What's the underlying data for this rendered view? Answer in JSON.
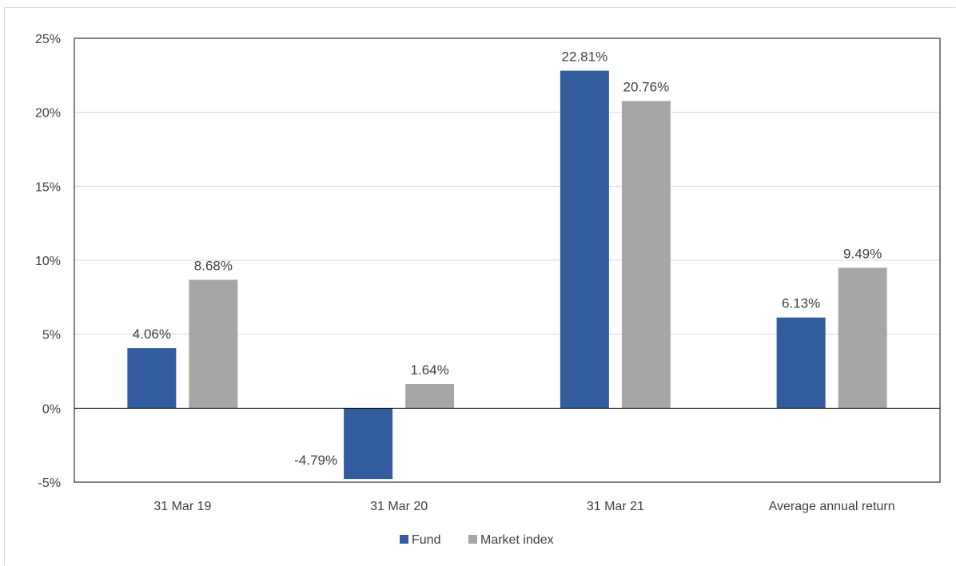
{
  "chart_data": {
    "type": "bar",
    "categories": [
      "31 Mar 19",
      "31 Mar 20",
      "31 Mar 21",
      "Average annual return"
    ],
    "series": [
      {
        "name": "Fund",
        "values": [
          4.06,
          -4.79,
          22.81,
          6.13
        ],
        "labels": [
          "4.06%",
          "-4.79%",
          "22.81%",
          "6.13%"
        ],
        "color": "#335c9e"
      },
      {
        "name": "Market index",
        "values": [
          8.68,
          1.64,
          20.76,
          9.49
        ],
        "labels": [
          "8.68%",
          "1.64%",
          "20.76%",
          "9.49%"
        ],
        "color": "#a6a6a6"
      }
    ],
    "yticks": [
      -5,
      0,
      5,
      10,
      15,
      20,
      25
    ],
    "ytick_labels": [
      "-5%",
      "0%",
      "5%",
      "10%",
      "15%",
      "20%",
      "25%"
    ],
    "ylim": [
      -5,
      25
    ],
    "grid": true,
    "legend_position": "bottom-center",
    "title": "",
    "xlabel": "",
    "ylabel": ""
  }
}
